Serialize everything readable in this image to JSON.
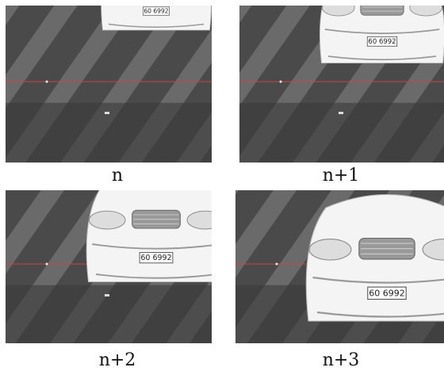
{
  "panels": [
    {
      "caption": "n",
      "plate": "60 6992"
    },
    {
      "caption": "n+1",
      "plate": "60 6992"
    },
    {
      "caption": "n+2",
      "plate": "60 6992"
    },
    {
      "caption": "n+3",
      "plate": "60 6992"
    }
  ]
}
